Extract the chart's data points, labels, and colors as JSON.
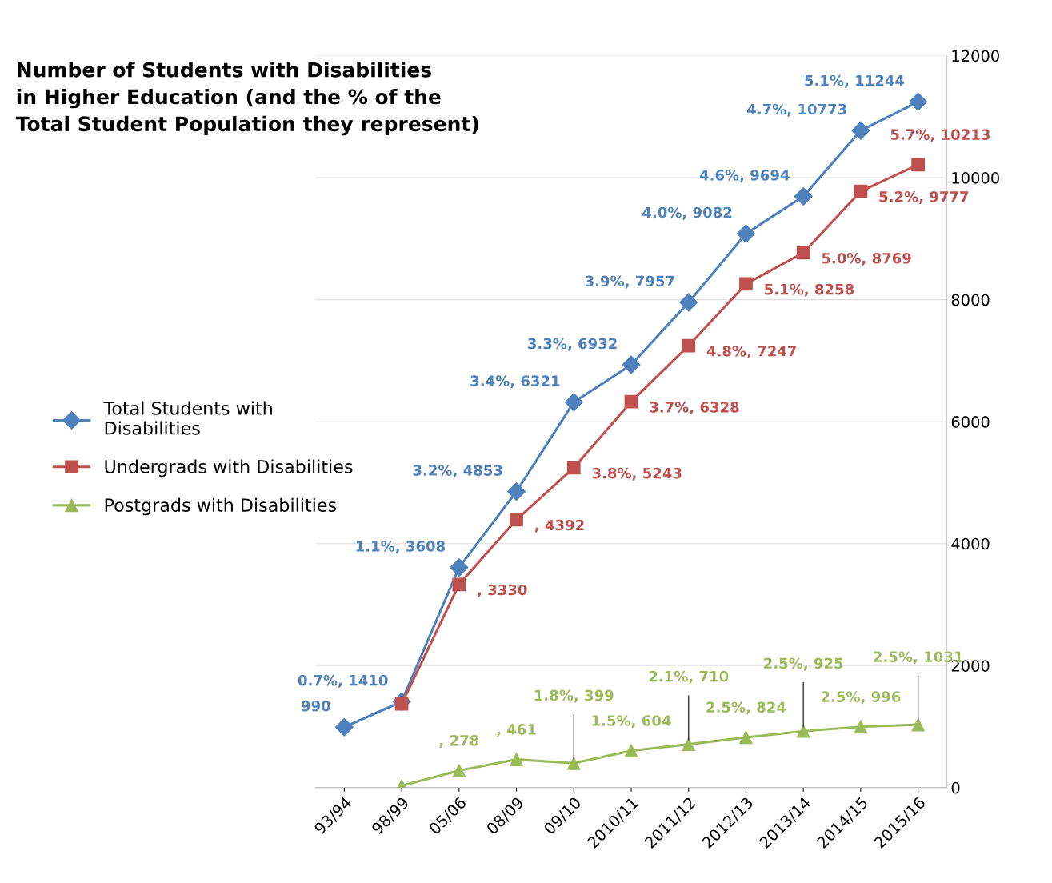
{
  "chart_data": {
    "type": "line",
    "title": "Number of Students with Disabilities\nin Higher Education (and the % of the\nTotal Student Population they represent)",
    "categories": [
      "93/94",
      "98/99",
      "05/06",
      "08/09",
      "09/10",
      "2010/11",
      "2011/12",
      "2012/13",
      "2013/14",
      "2014/15",
      "2015/16"
    ],
    "series": [
      {
        "name": "Total Students with\nDisabilities",
        "color": "#4f81bd",
        "marker": "diamond",
        "values": [
          990,
          1410,
          3608,
          4853,
          6321,
          6932,
          7957,
          9082,
          9694,
          10773,
          11244
        ],
        "value_labels": [
          "990",
          "0.7%, 1410",
          "1.1%, 3608",
          "3.2%, 4853",
          "3.4%, 6321",
          "3.3%, 6932",
          "3.9%, 7957",
          "4.0%, 9082",
          "4.6%, 9694",
          "4.7%, 10773",
          "5.1%, 11244"
        ]
      },
      {
        "name": "Undergrads with Disabilities",
        "color": "#c0504d",
        "marker": "square",
        "values": [
          null,
          1370,
          3330,
          4392,
          5243,
          6328,
          7247,
          8258,
          8769,
          9777,
          10213
        ],
        "value_labels": [
          null,
          null,
          ", 3330",
          ", 4392",
          "3.8%, 5243",
          "3.7%, 6328",
          "4.8%, 7247",
          "5.1%, 8258",
          "5.0%, 8769",
          "5.2%, 9777",
          "5.7%, 10213"
        ]
      },
      {
        "name": "Postgrads with Disabilities",
        "color": "#9bbb59",
        "marker": "triangle",
        "values": [
          null,
          30,
          278,
          461,
          399,
          604,
          710,
          824,
          925,
          996,
          1031
        ],
        "value_labels": [
          null,
          null,
          ", 278",
          ", 461",
          "1.8%, 399",
          "1.5%, 604",
          "2.1%, 710",
          "2.5%, 824",
          "2.5%, 925",
          "2.5%, 996",
          "2.5%, 1031"
        ]
      }
    ],
    "ylim": [
      0,
      12000
    ],
    "yticks": [
      0,
      2000,
      4000,
      6000,
      8000,
      10000,
      12000
    ],
    "grid": "y",
    "legend": "left",
    "line_style": "solid"
  }
}
